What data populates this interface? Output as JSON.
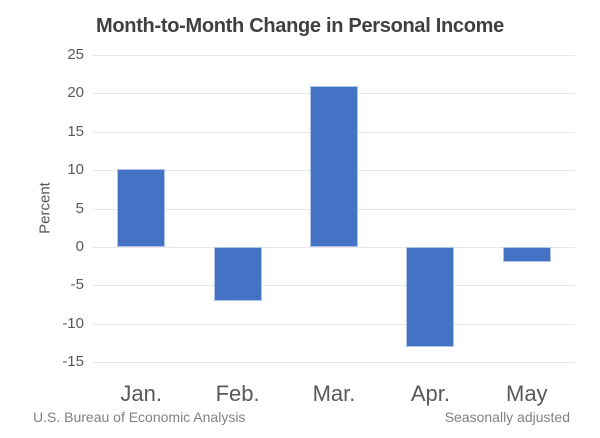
{
  "chart_data": {
    "type": "bar",
    "title": "Month-to-Month Change in Personal Income",
    "categories": [
      "Jan.",
      "Feb.",
      "Mar.",
      "Apr.",
      "May"
    ],
    "values": [
      10.1,
      -7.0,
      20.9,
      -13.1,
      -2.0
    ],
    "xlabel": "",
    "ylabel": "Percent",
    "ylim": [
      -15,
      25
    ],
    "ytick_step": 5,
    "yticks": [
      25,
      20,
      15,
      10,
      5,
      0,
      -5,
      -10,
      -15
    ],
    "grid": true,
    "legend": false,
    "colors": {
      "bar_fill": "#4472C4",
      "bar_border": "#AEC4E8",
      "gridline": "#E8E8E8",
      "title_text": "#404040",
      "axis_text": "#595959",
      "footer_text": "#818181"
    }
  },
  "footer": {
    "source": "U.S. Bureau of Economic Analysis",
    "note": "Seasonally adjusted"
  }
}
